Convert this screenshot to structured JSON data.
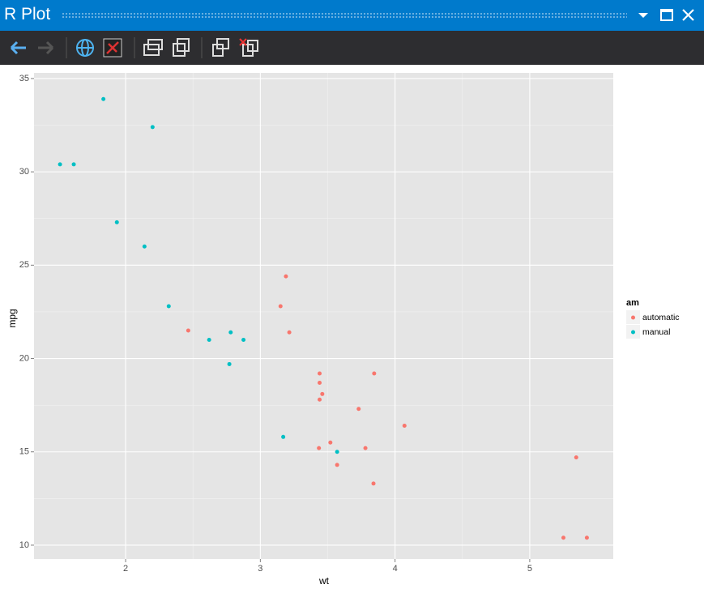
{
  "window": {
    "title": "R Plot"
  },
  "chart_data": {
    "type": "scatter",
    "x_label": "wt",
    "y_label": "mpg",
    "legend_title": "am",
    "legend": "right",
    "series": [
      {
        "name": "automatic",
        "color": "#f8766d",
        "x": [
          3.215,
          3.44,
          3.46,
          3.57,
          3.19,
          3.15,
          3.44,
          3.44,
          4.07,
          3.73,
          3.78,
          5.25,
          5.424,
          5.345,
          2.465,
          3.52,
          3.435,
          3.84,
          3.845
        ],
        "values": [
          21.4,
          18.7,
          18.1,
          14.3,
          24.4,
          22.8,
          19.2,
          17.8,
          16.4,
          17.3,
          15.2,
          10.4,
          10.4,
          14.7,
          21.5,
          15.5,
          15.2,
          13.3,
          19.2
        ]
      },
      {
        "name": "manual",
        "color": "#00bfc4",
        "x": [
          2.62,
          2.875,
          2.32,
          2.2,
          1.615,
          1.835,
          1.935,
          2.14,
          1.513,
          3.17,
          2.77,
          3.57,
          2.78
        ],
        "values": [
          21.0,
          21.0,
          22.8,
          32.4,
          30.4,
          33.9,
          27.3,
          26.0,
          30.4,
          15.8,
          19.7,
          15.0,
          21.4
        ]
      }
    ],
    "xlim": [
      1.32,
      5.62
    ],
    "ylim": [
      9.26,
      35.3
    ],
    "xticks": [
      2,
      3,
      4,
      5
    ],
    "yticks": [
      10,
      15,
      20,
      25,
      30,
      35
    ],
    "grid": true
  }
}
